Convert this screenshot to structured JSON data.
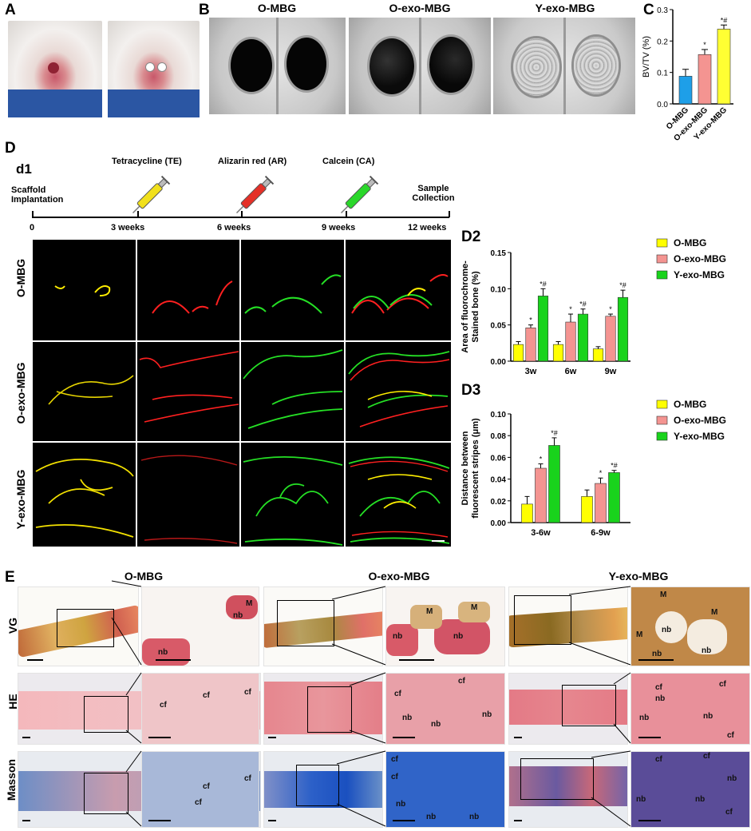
{
  "panels": {
    "A": "A",
    "B": "B",
    "C": "C",
    "D": "D",
    "d1": "d1",
    "D2": "D2",
    "D3": "D3",
    "E": "E"
  },
  "colors": {
    "O-MBG": "#ffff00",
    "O-exo-MBG": "#f49491",
    "Y-exo-MBG": "#19d31c",
    "C-O-MBG": "#1e9fe8",
    "C-O-exo-MBG": "#f49491",
    "C-Y-exo-MBG": "#ffff33"
  },
  "panelB": {
    "titles": [
      "O-MBG",
      "O-exo-MBG",
      "Y-exo-MBG"
    ]
  },
  "timeline": {
    "start_label": "Scaffold Implantation",
    "end_label": "Sample Collection",
    "tick_labels": [
      "0",
      "3 weeks",
      "6 weeks",
      "9 weeks",
      "12 weeks"
    ],
    "labels": [
      "Tetracycline (TE)",
      "Alizarin red (AR)",
      "Calcein (CA)"
    ]
  },
  "fluoro": {
    "rows": [
      "O-MBG",
      "O-exo-MBG",
      "Y-exo-MBG"
    ]
  },
  "histology": {
    "col_titles": [
      "O-MBG",
      "O-exo-MBG",
      "Y-exo-MBG"
    ],
    "row_labels": [
      "VG",
      "HE",
      "Masson"
    ],
    "marks": {
      "vg1": [
        "M",
        "nb",
        "nb"
      ],
      "vg2": [
        "M",
        "M",
        "nb",
        "nb"
      ],
      "vg3": [
        "M",
        "M",
        "M",
        "nb",
        "nb",
        "nb"
      ],
      "he1": [
        "cf",
        "cf",
        "cf"
      ],
      "he2": [
        "cf",
        "cf",
        "nb",
        "nb",
        "nb"
      ],
      "he3": [
        "cf",
        "cf",
        "nb",
        "nb",
        "nb",
        "cf"
      ],
      "ma1": [
        "cf",
        "cf",
        "cf"
      ],
      "ma2": [
        "cf",
        "cf",
        "nb",
        "nb",
        "nb"
      ],
      "ma3": [
        "cf",
        "cf",
        "nb",
        "nb",
        "nb",
        "cf"
      ]
    }
  },
  "chart_data": [
    {
      "id": "C",
      "type": "bar",
      "categories": [
        "O-MBG",
        "O-exo-MBG",
        "Y-exo-MBG"
      ],
      "values": [
        0.088,
        0.157,
        0.238
      ],
      "errors": [
        0.022,
        0.016,
        0.013
      ],
      "annotations": [
        "",
        "*",
        "*#"
      ],
      "ylabel": "BV/TV (%)",
      "ylim": [
        0,
        0.3
      ],
      "yticks": [
        "0.0",
        "0.1",
        "0.2",
        "0.3"
      ]
    },
    {
      "id": "D2",
      "type": "bar",
      "categories": [
        "3w",
        "6w",
        "9w"
      ],
      "series": [
        {
          "name": "O-MBG",
          "values": [
            0.023,
            0.023,
            0.017
          ],
          "errors": [
            0.004,
            0.004,
            0.003
          ],
          "annotations": [
            "",
            "",
            ""
          ]
        },
        {
          "name": "O-exo-MBG",
          "values": [
            0.046,
            0.054,
            0.062
          ],
          "errors": [
            0.004,
            0.011,
            0.003
          ],
          "annotations": [
            "*",
            "*",
            "*"
          ]
        },
        {
          "name": "Y-exo-MBG",
          "values": [
            0.09,
            0.065,
            0.088
          ],
          "errors": [
            0.01,
            0.007,
            0.01
          ],
          "annotations": [
            "*#",
            "*#",
            "*#"
          ]
        }
      ],
      "ylabel": "Area of fluorochrome-Stained bone (%)",
      "ylim": [
        0,
        0.15
      ],
      "yticks": [
        "0.00",
        "0.05",
        "0.10",
        "0.15"
      ]
    },
    {
      "id": "D3",
      "type": "bar",
      "categories": [
        "3-6w",
        "6-9w"
      ],
      "series": [
        {
          "name": "O-MBG",
          "values": [
            0.017,
            0.024
          ],
          "errors": [
            0.007,
            0.006
          ],
          "annotations": [
            "",
            ""
          ]
        },
        {
          "name": "O-exo-MBG",
          "values": [
            0.05,
            0.036
          ],
          "errors": [
            0.004,
            0.005
          ],
          "annotations": [
            "*",
            "*"
          ]
        },
        {
          "name": "Y-exo-MBG",
          "values": [
            0.071,
            0.046
          ],
          "errors": [
            0.007,
            0.002
          ],
          "annotations": [
            "*#",
            "*#"
          ]
        }
      ],
      "ylabel": "Distance between fluorescent stripes (μm)",
      "ylim": [
        0,
        0.1
      ],
      "yticks": [
        "0.00",
        "0.02",
        "0.04",
        "0.06",
        "0.08",
        "0.10"
      ]
    }
  ]
}
